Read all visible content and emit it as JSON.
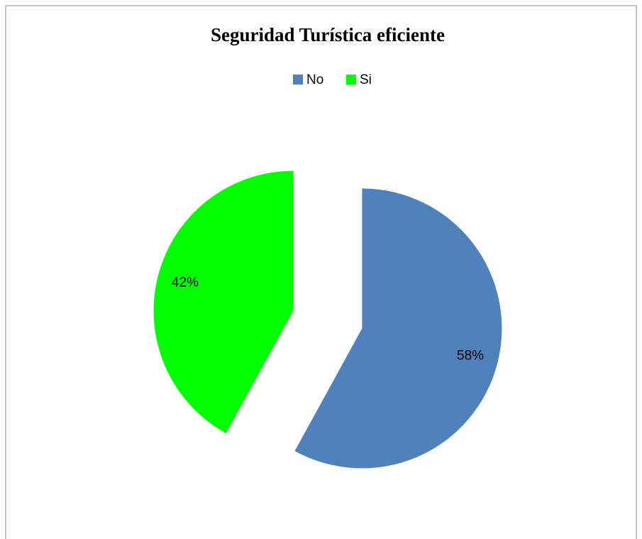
{
  "chart_data": {
    "type": "pie",
    "title": "Seguridad Turística eficiente",
    "categories": [
      "No",
      "Si"
    ],
    "values": [
      58,
      42
    ],
    "value_labels": [
      "58%",
      "42%"
    ],
    "colors": [
      "#4f81bd",
      "#00ff00"
    ],
    "legend": "top"
  }
}
